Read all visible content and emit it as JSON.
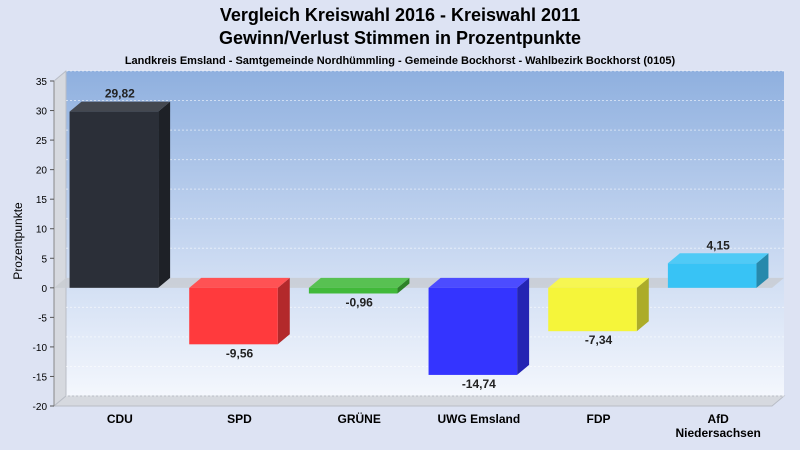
{
  "chart_data": {
    "type": "bar",
    "title": "Vergleich Kreiswahl 2016 - Kreiswahl 2011",
    "title2": "Gewinn/Verlust Stimmen in Prozentpunkte",
    "subtitle": "Landkreis Emsland - Samtgemeinde Nordhümmling - Gemeinde Bockhorst - Wahlbezirk Bockhorst (0105)",
    "ylabel": "Prozentpunkte",
    "ylim": [
      -20,
      35
    ],
    "yticks": [
      35,
      30,
      25,
      20,
      15,
      10,
      5,
      0,
      -5,
      -10,
      -15,
      -20
    ],
    "grid": true,
    "categories": [
      "CDU",
      "SPD",
      "GRÜNE",
      "UWG Emsland",
      "FDP",
      "AfD Niedersachsen"
    ],
    "category_lines": [
      [
        "CDU"
      ],
      [
        "SPD"
      ],
      [
        "GRÜNE"
      ],
      [
        "UWG Emsland"
      ],
      [
        "FDP"
      ],
      [
        "AfD",
        "Niedersachsen"
      ]
    ],
    "values": [
      29.82,
      -9.56,
      -0.96,
      -14.74,
      -7.34,
      4.15
    ],
    "value_labels": [
      "29,82",
      "-9,56",
      "-0,96",
      "-14,74",
      "-7,34",
      "4,15"
    ],
    "colors": [
      "#2b2f38",
      "#ff3a3d",
      "#41b93a",
      "#3434ff",
      "#f5f53a",
      "#38c3f5"
    ]
  }
}
